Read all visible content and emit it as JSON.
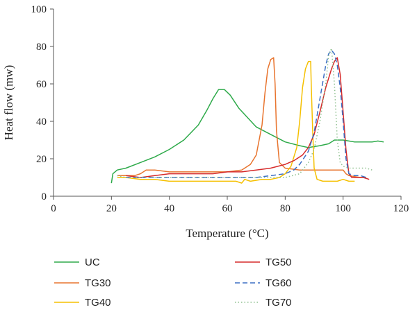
{
  "chart_data": {
    "type": "line",
    "xlabel": "Temperature (°C)",
    "ylabel": "Heat flow (mw)",
    "xlim": [
      0,
      120
    ],
    "ylim": [
      0,
      100
    ],
    "xticks": [
      "0",
      "20",
      "40",
      "60",
      "80",
      "100",
      "120"
    ],
    "yticks": [
      "0",
      "20",
      "40",
      "60",
      "80",
      "100"
    ],
    "grid": false,
    "legend_position": "bottom",
    "series": [
      {
        "name": "UC",
        "color": "#2eaa4a",
        "dash": "solid",
        "points": [
          [
            20,
            7
          ],
          [
            20.5,
            12
          ],
          [
            22,
            14
          ],
          [
            25,
            15
          ],
          [
            30,
            18
          ],
          [
            35,
            21
          ],
          [
            40,
            25
          ],
          [
            45,
            30
          ],
          [
            50,
            38
          ],
          [
            53,
            46
          ],
          [
            55,
            52
          ],
          [
            57,
            57
          ],
          [
            59,
            57
          ],
          [
            61,
            54
          ],
          [
            64,
            47
          ],
          [
            67,
            42
          ],
          [
            70,
            37
          ],
          [
            75,
            33
          ],
          [
            80,
            29
          ],
          [
            85,
            27
          ],
          [
            88,
            26
          ],
          [
            92,
            27
          ],
          [
            95,
            28
          ],
          [
            97,
            30
          ],
          [
            100,
            30
          ],
          [
            104,
            29
          ],
          [
            108,
            29
          ],
          [
            110,
            29
          ],
          [
            112,
            29.5
          ],
          [
            114,
            29
          ]
        ]
      },
      {
        "name": "TG30",
        "color": "#e8742e",
        "dash": "solid",
        "points": [
          [
            22,
            11
          ],
          [
            25,
            11
          ],
          [
            28,
            11
          ],
          [
            30,
            12
          ],
          [
            32,
            14
          ],
          [
            35,
            14
          ],
          [
            40,
            13
          ],
          [
            45,
            13
          ],
          [
            50,
            13
          ],
          [
            55,
            13
          ],
          [
            60,
            13
          ],
          [
            65,
            14
          ],
          [
            68,
            17
          ],
          [
            70,
            22
          ],
          [
            72,
            38
          ],
          [
            73,
            55
          ],
          [
            74,
            68
          ],
          [
            75,
            73
          ],
          [
            76,
            74
          ],
          [
            76.5,
            60
          ],
          [
            77,
            35
          ],
          [
            78,
            18
          ],
          [
            80,
            15
          ],
          [
            85,
            14
          ],
          [
            90,
            14
          ],
          [
            95,
            14
          ],
          [
            100,
            14
          ],
          [
            101,
            12
          ],
          [
            102,
            11
          ],
          [
            104,
            10.5
          ],
          [
            106,
            10
          ],
          [
            108,
            10
          ]
        ]
      },
      {
        "name": "TG40",
        "color": "#f5c000",
        "dash": "solid",
        "points": [
          [
            22,
            10
          ],
          [
            25,
            10
          ],
          [
            30,
            9
          ],
          [
            35,
            9
          ],
          [
            40,
            8
          ],
          [
            45,
            8
          ],
          [
            50,
            8
          ],
          [
            55,
            8
          ],
          [
            60,
            8
          ],
          [
            63,
            8
          ],
          [
            65,
            7
          ],
          [
            66,
            9
          ],
          [
            68,
            8
          ],
          [
            72,
            9
          ],
          [
            75,
            9
          ],
          [
            78,
            10
          ],
          [
            80,
            12
          ],
          [
            82,
            16
          ],
          [
            84,
            26
          ],
          [
            85,
            40
          ],
          [
            86,
            58
          ],
          [
            87,
            68
          ],
          [
            88,
            72
          ],
          [
            88.8,
            72
          ],
          [
            89,
            60
          ],
          [
            89.5,
            35
          ],
          [
            90,
            15
          ],
          [
            91,
            9
          ],
          [
            93,
            8
          ],
          [
            95,
            8
          ],
          [
            98,
            8
          ],
          [
            100,
            9
          ],
          [
            102,
            8
          ],
          [
            104,
            8
          ]
        ]
      },
      {
        "name": "TG50",
        "color": "#d62a2a",
        "dash": "solid",
        "points": [
          [
            25,
            11
          ],
          [
            30,
            10
          ],
          [
            35,
            11
          ],
          [
            40,
            12
          ],
          [
            45,
            12
          ],
          [
            50,
            12
          ],
          [
            55,
            12
          ],
          [
            60,
            13
          ],
          [
            65,
            13
          ],
          [
            70,
            14
          ],
          [
            75,
            15
          ],
          [
            80,
            17
          ],
          [
            83,
            19
          ],
          [
            86,
            22
          ],
          [
            88,
            26
          ],
          [
            90,
            33
          ],
          [
            92,
            45
          ],
          [
            94,
            58
          ],
          [
            96,
            68
          ],
          [
            97,
            72
          ],
          [
            98,
            74
          ],
          [
            99,
            65
          ],
          [
            100,
            45
          ],
          [
            101,
            25
          ],
          [
            102,
            12
          ],
          [
            103,
            10
          ],
          [
            105,
            10
          ],
          [
            107,
            10
          ],
          [
            109,
            9
          ]
        ]
      },
      {
        "name": "TG60",
        "color": "#3b6fc4",
        "dash": "dashed",
        "points": [
          [
            25,
            10
          ],
          [
            30,
            10
          ],
          [
            35,
            10
          ],
          [
            40,
            10
          ],
          [
            45,
            10
          ],
          [
            50,
            10
          ],
          [
            55,
            10
          ],
          [
            60,
            10
          ],
          [
            65,
            10
          ],
          [
            70,
            10
          ],
          [
            75,
            11
          ],
          [
            80,
            12
          ],
          [
            83,
            14
          ],
          [
            85,
            17
          ],
          [
            88,
            24
          ],
          [
            90,
            34
          ],
          [
            92,
            52
          ],
          [
            94,
            70
          ],
          [
            95,
            76
          ],
          [
            96,
            78
          ],
          [
            97,
            76
          ],
          [
            98,
            70
          ],
          [
            99,
            58
          ],
          [
            100,
            40
          ],
          [
            101,
            20
          ],
          [
            102,
            12
          ],
          [
            104,
            11
          ],
          [
            106,
            11
          ],
          [
            108,
            10
          ]
        ]
      },
      {
        "name": "TG70",
        "color": "#8fc08f",
        "dash": "dotted",
        "points": [
          [
            22,
            11
          ],
          [
            25,
            10
          ],
          [
            30,
            10
          ],
          [
            35,
            10
          ],
          [
            40,
            10
          ],
          [
            45,
            10
          ],
          [
            50,
            10
          ],
          [
            55,
            10
          ],
          [
            60,
            10
          ],
          [
            65,
            10
          ],
          [
            70,
            10
          ],
          [
            75,
            10
          ],
          [
            80,
            10
          ],
          [
            85,
            12
          ],
          [
            88,
            18
          ],
          [
            90,
            25
          ],
          [
            92,
            40
          ],
          [
            94,
            60
          ],
          [
            95,
            75
          ],
          [
            96,
            79
          ],
          [
            97,
            60
          ],
          [
            98,
            30
          ],
          [
            99,
            18
          ],
          [
            100,
            16
          ],
          [
            102,
            15
          ],
          [
            105,
            15
          ],
          [
            108,
            15
          ],
          [
            110,
            14
          ]
        ]
      }
    ]
  }
}
